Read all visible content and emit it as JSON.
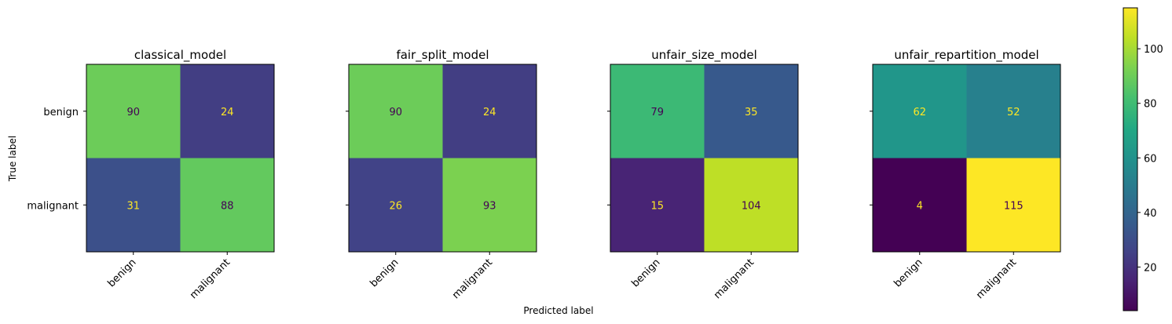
{
  "chart_data": {
    "type": "heatmap",
    "colormap": "viridis",
    "xlabel": "Predicted label",
    "ylabel": "True label",
    "x_categories": [
      "benign",
      "malignant"
    ],
    "y_categories": [
      "benign",
      "malignant"
    ],
    "colorbar": {
      "vmin": 4,
      "vmax": 115,
      "ticks": [
        20,
        40,
        60,
        80,
        100
      ]
    },
    "panels": [
      {
        "title": "classical_model",
        "matrix": [
          [
            90,
            24
          ],
          [
            31,
            88
          ]
        ]
      },
      {
        "title": "fair_split_model",
        "matrix": [
          [
            90,
            24
          ],
          [
            26,
            93
          ]
        ]
      },
      {
        "title": "unfair_size_model",
        "matrix": [
          [
            79,
            35
          ],
          [
            15,
            104
          ]
        ]
      },
      {
        "title": "unfair_repartition_model",
        "matrix": [
          [
            62,
            52
          ],
          [
            4,
            115
          ]
        ]
      }
    ]
  }
}
